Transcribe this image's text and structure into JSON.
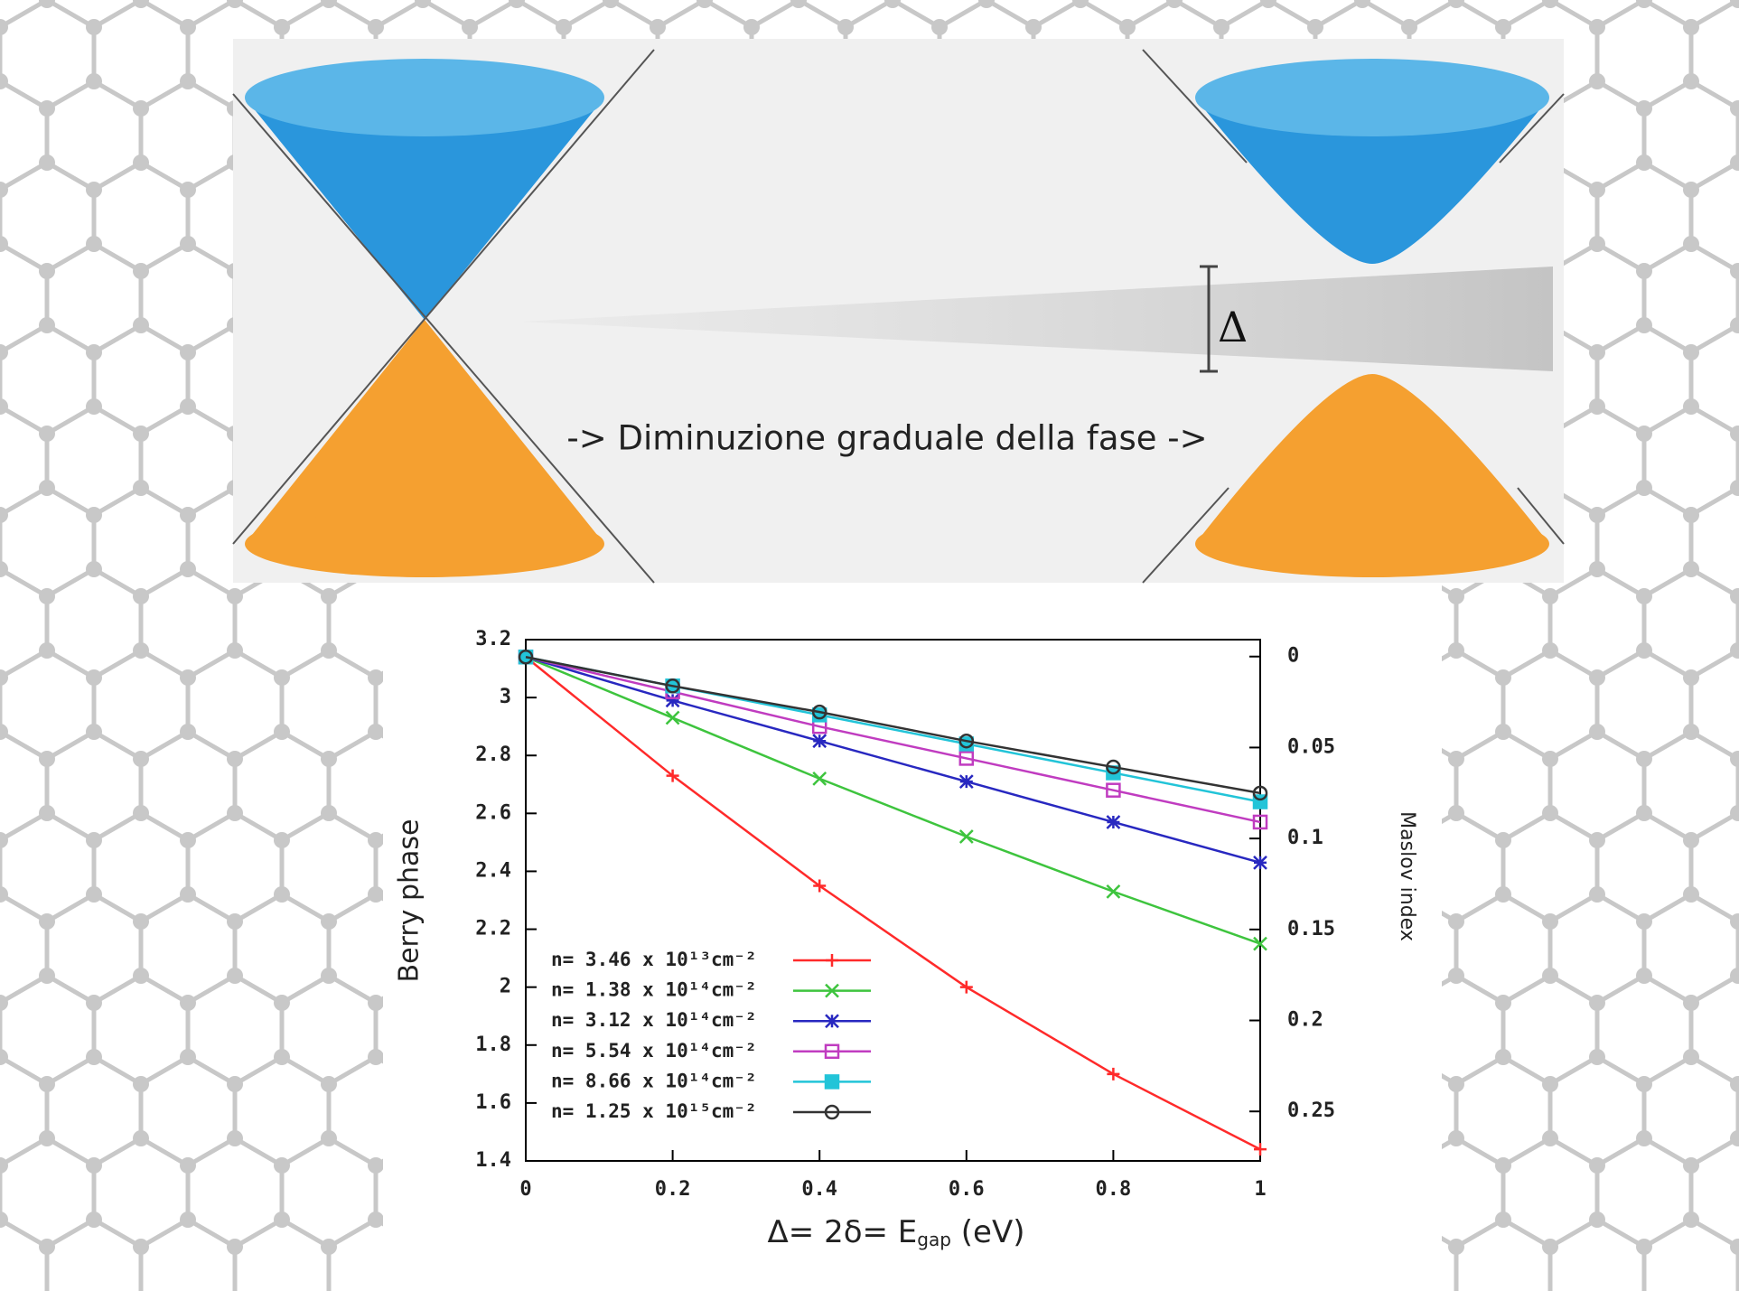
{
  "diagram": {
    "caption": "-> Diminuzione graduale della fase ->",
    "gap_label": "Δ"
  },
  "chart_data": {
    "type": "line",
    "y_label": "Berry phase",
    "y2_label": "Maslov index",
    "x_label_parts": [
      "Δ= 2δ= E",
      "gap",
      " (eV)"
    ],
    "x": [
      0,
      0.2,
      0.4,
      0.6,
      0.8,
      1
    ],
    "xlim": [
      0,
      1
    ],
    "xticks": [
      0,
      0.2,
      0.4,
      0.6,
      0.8,
      1
    ],
    "ylim": [
      1.4,
      3.2
    ],
    "yticks": [
      1.4,
      1.6,
      1.8,
      2,
      2.2,
      2.4,
      2.6,
      2.8,
      3,
      3.2
    ],
    "y2lim": [
      0.2772,
      -0.0093
    ],
    "y2ticks": [
      0,
      0.05,
      0.1,
      0.15,
      0.2,
      0.25
    ],
    "series": [
      {
        "name": "n= 3.46 x 10¹³cm⁻²",
        "color": "#ff2a2a",
        "marker": "plus",
        "values": [
          3.14,
          2.73,
          2.35,
          2.0,
          1.7,
          1.44
        ]
      },
      {
        "name": "n= 1.38 x 10¹⁴cm⁻²",
        "color": "#3ec43e",
        "marker": "cross",
        "values": [
          3.14,
          2.93,
          2.72,
          2.52,
          2.33,
          2.15
        ]
      },
      {
        "name": "n= 3.12 x 10¹⁴cm⁻²",
        "color": "#2828c0",
        "marker": "star",
        "values": [
          3.14,
          2.99,
          2.85,
          2.71,
          2.57,
          2.43
        ]
      },
      {
        "name": "n= 5.54 x 10¹⁴cm⁻²",
        "color": "#c03cc0",
        "marker": "square",
        "values": [
          3.14,
          3.02,
          2.9,
          2.79,
          2.68,
          2.57
        ]
      },
      {
        "name": "n= 8.66 x 10¹⁴cm⁻²",
        "color": "#22c4d8",
        "marker": "filled-square",
        "values": [
          3.14,
          3.04,
          2.94,
          2.84,
          2.74,
          2.64
        ]
      },
      {
        "name": "n= 1.25 x 10¹⁵cm⁻²",
        "color": "#333333",
        "marker": "circle",
        "values": [
          3.14,
          3.04,
          2.95,
          2.85,
          2.76,
          2.67
        ]
      }
    ]
  }
}
